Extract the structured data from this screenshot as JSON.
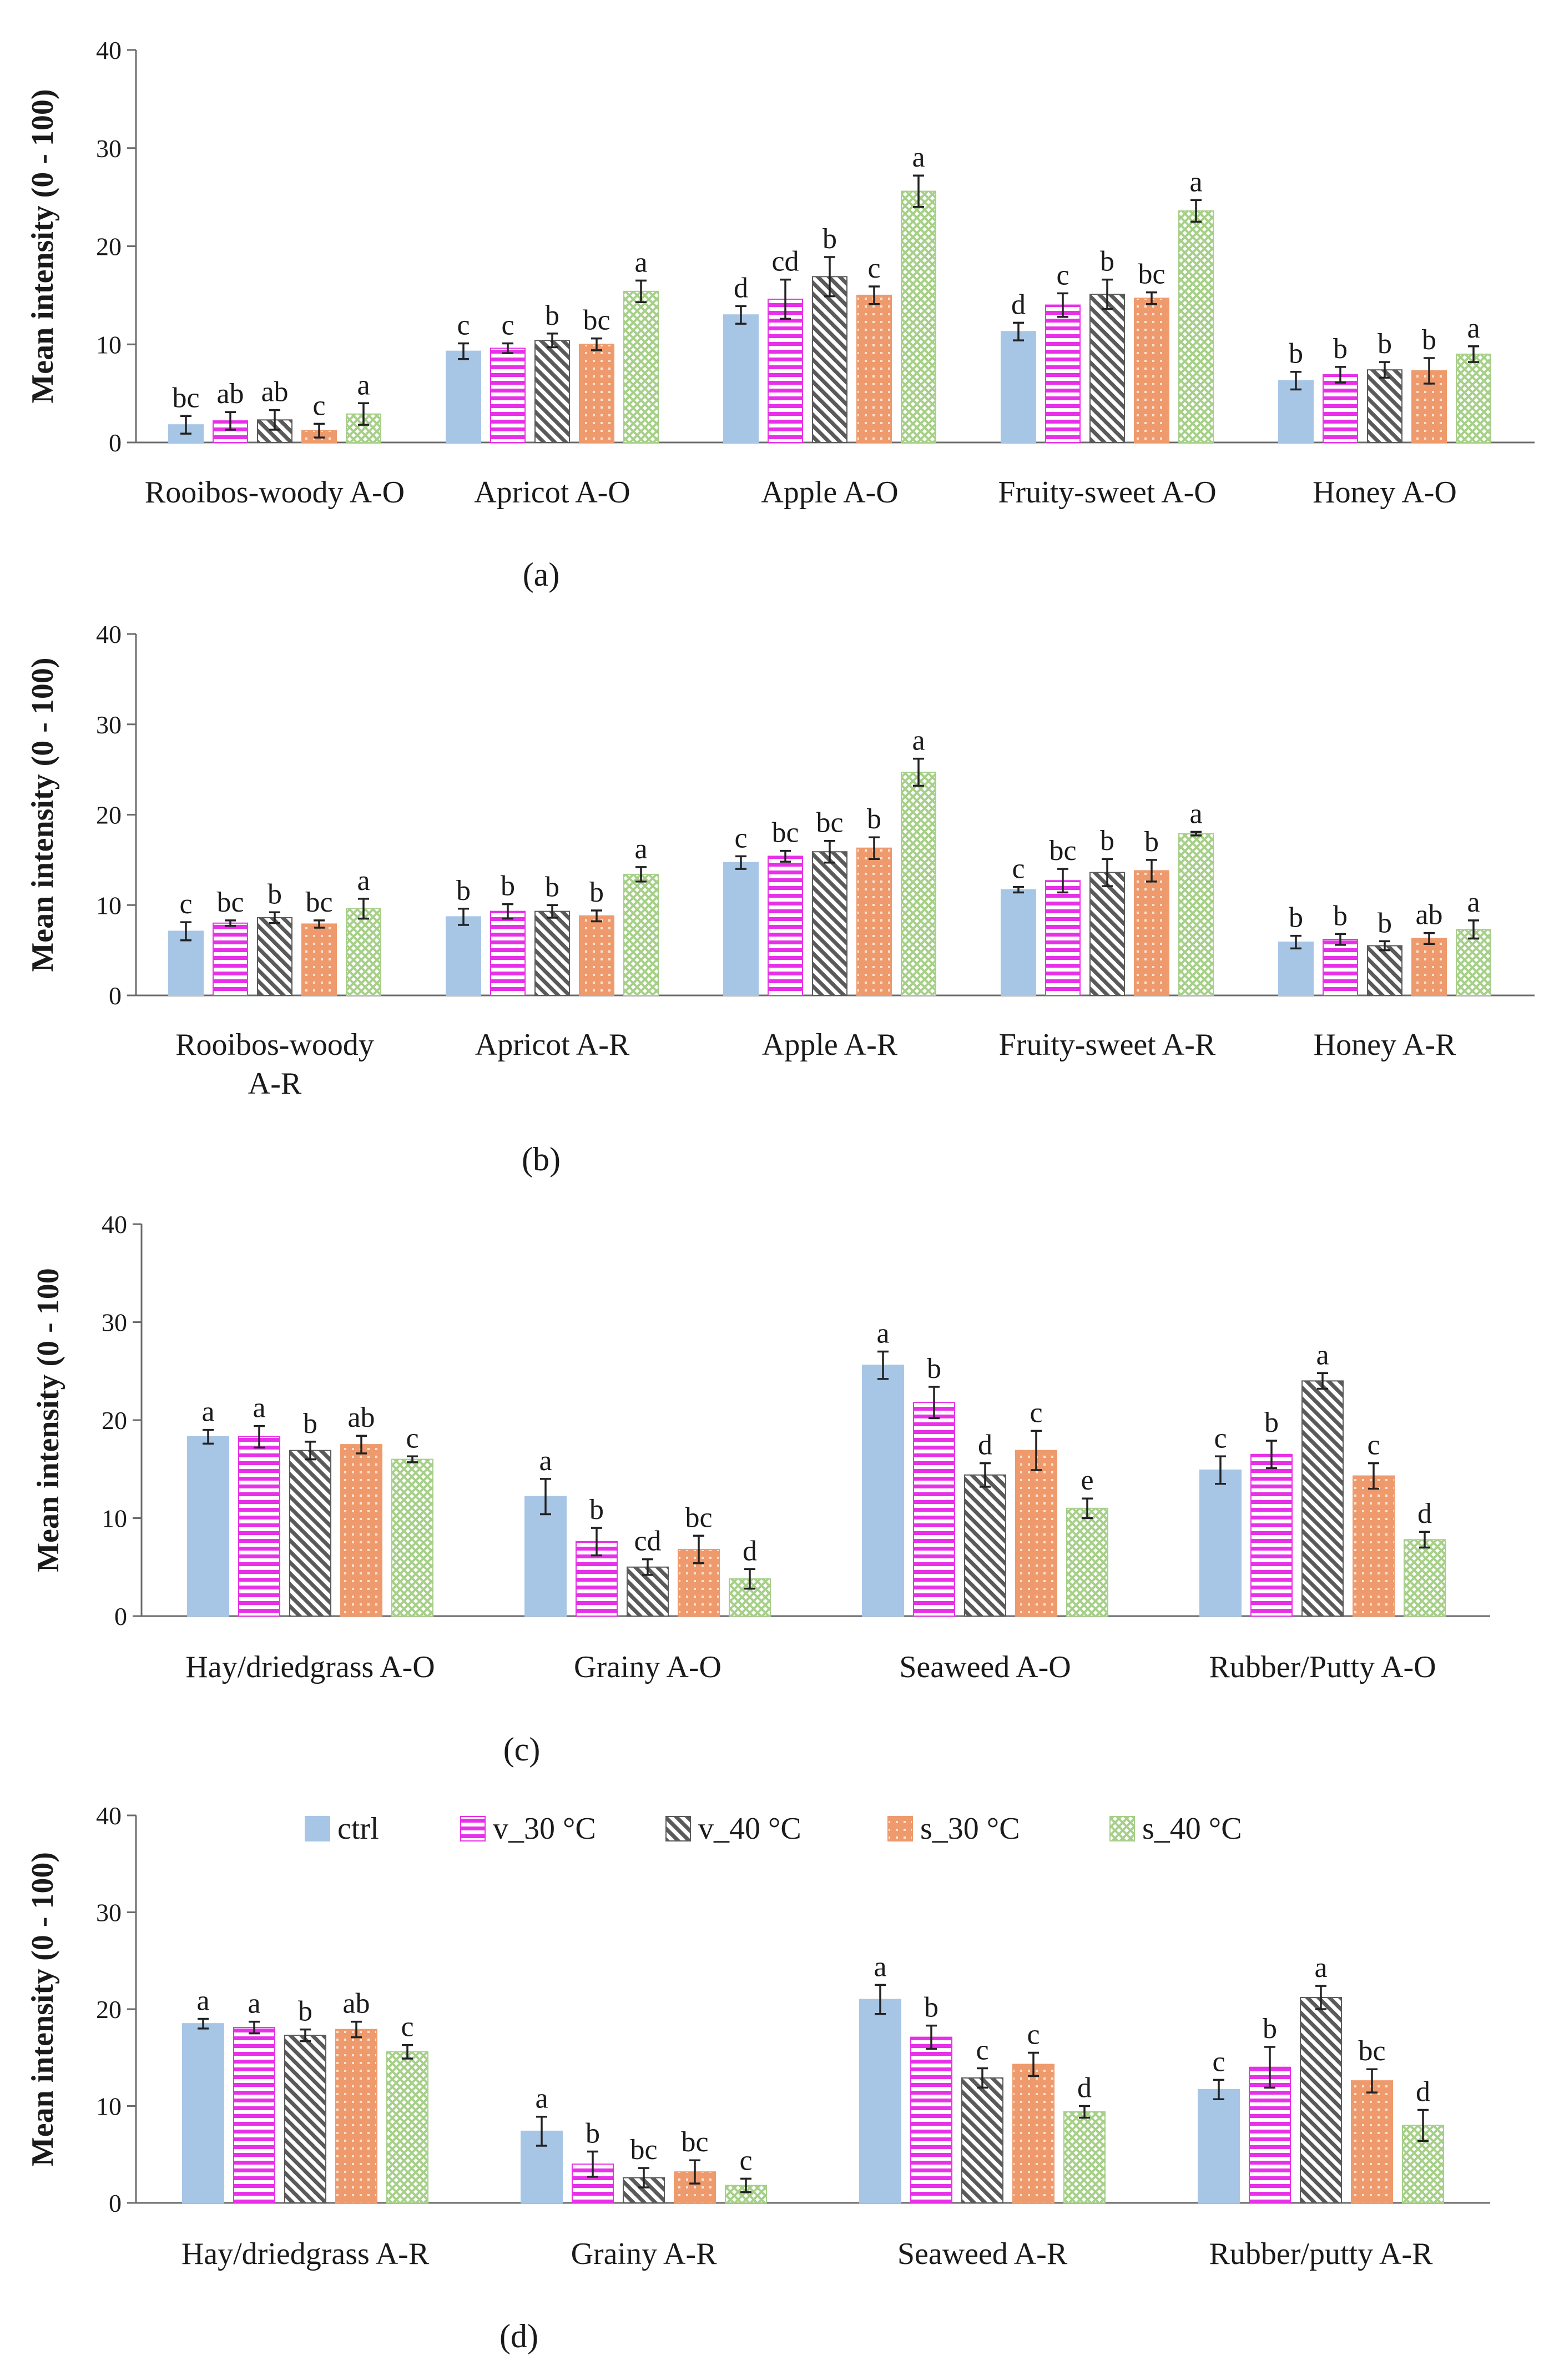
{
  "figure": {
    "series_names": [
      "ctrl",
      "v_30 °C",
      "v_40 °C",
      "s_30 °C",
      "s_40 °C"
    ],
    "colors": {
      "ctrl": "#a7c6e6",
      "v_30": "#e830e8",
      "v_40": "#5a5a5a",
      "s_30": "#ee9a6c",
      "s_40": "#a6cf88",
      "axis": "#6b6b6b",
      "text": "#1a1a1a"
    }
  },
  "chart_data": [
    {
      "panel_label": "(a)",
      "type": "bar",
      "ylabel": "Mean intensity (0 - 100)",
      "ylim": [
        0,
        40
      ],
      "yticks": [
        "0",
        "10",
        "20",
        "30",
        "40"
      ],
      "categories": [
        "Rooibos-woody A-O",
        "Apricot A-O",
        "Apple A-O",
        "Fruity-sweet A-O",
        "Honey A-O"
      ],
      "series": [
        {
          "name": "ctrl",
          "values": [
            1.8,
            9.3,
            13.0,
            11.3,
            6.3
          ],
          "errors": [
            0.9,
            0.8,
            0.9,
            0.9,
            0.9
          ],
          "letters": [
            "bc",
            "c",
            "d",
            "d",
            "b"
          ]
        },
        {
          "name": "v_30 °C",
          "values": [
            2.2,
            9.6,
            14.6,
            14.0,
            6.9
          ],
          "errors": [
            0.9,
            0.5,
            2.0,
            1.2,
            0.8
          ],
          "letters": [
            "ab",
            "c",
            "cd",
            "c",
            "b"
          ]
        },
        {
          "name": "v_40 °C",
          "values": [
            2.3,
            10.4,
            16.9,
            15.1,
            7.4
          ],
          "errors": [
            1.0,
            0.7,
            2.0,
            1.5,
            0.8
          ],
          "letters": [
            "ab",
            "b",
            "b",
            "b",
            "b"
          ]
        },
        {
          "name": "s_30 °C",
          "values": [
            1.2,
            10.0,
            15.0,
            14.7,
            7.3
          ],
          "errors": [
            0.7,
            0.6,
            0.9,
            0.6,
            1.3
          ],
          "letters": [
            "c",
            "bc",
            "c",
            "bc",
            "b"
          ]
        },
        {
          "name": "s_40 °C",
          "values": [
            2.9,
            15.4,
            25.6,
            23.6,
            9.0
          ],
          "errors": [
            1.1,
            1.1,
            1.6,
            1.1,
            0.8
          ],
          "letters": [
            "a",
            "a",
            "a",
            "a",
            "a"
          ]
        }
      ]
    },
    {
      "panel_label": "(b)",
      "type": "bar",
      "ylabel": "Mean intensity (0 - 100)",
      "ylim": [
        0,
        40
      ],
      "yticks": [
        "0",
        "10",
        "20",
        "30",
        "40"
      ],
      "categories": [
        "Rooibos-woody A-R",
        "Apricot A-R",
        "Apple A-R",
        "Fruity-sweet A-R",
        "Honey A-R"
      ],
      "series": [
        {
          "name": "ctrl",
          "values": [
            7.1,
            8.7,
            14.7,
            11.7,
            5.9
          ],
          "errors": [
            1.0,
            0.9,
            0.7,
            0.3,
            0.7
          ],
          "letters": [
            "c",
            "b",
            "c",
            "c",
            "b"
          ]
        },
        {
          "name": "v_30 °C",
          "values": [
            8.0,
            9.3,
            15.4,
            12.7,
            6.2
          ],
          "errors": [
            0.3,
            0.8,
            0.6,
            1.3,
            0.6
          ],
          "letters": [
            "bc",
            "b",
            "bc",
            "bc",
            "b"
          ]
        },
        {
          "name": "v_40 °C",
          "values": [
            8.6,
            9.3,
            15.9,
            13.6,
            5.5
          ],
          "errors": [
            0.6,
            0.7,
            1.2,
            1.5,
            0.5
          ],
          "letters": [
            "b",
            "b",
            "bc",
            "b",
            "b"
          ]
        },
        {
          "name": "s_30 °C",
          "values": [
            7.9,
            8.8,
            16.3,
            13.8,
            6.3
          ],
          "errors": [
            0.4,
            0.6,
            1.2,
            1.2,
            0.6
          ],
          "letters": [
            "bc",
            "b",
            "b",
            "b",
            "ab"
          ]
        },
        {
          "name": "s_40 °C",
          "values": [
            9.6,
            13.4,
            24.7,
            17.9,
            7.3
          ],
          "errors": [
            1.1,
            0.8,
            1.5,
            0.2,
            1.0
          ],
          "letters": [
            "a",
            "a",
            "a",
            "a",
            "a"
          ]
        }
      ]
    },
    {
      "panel_label": "(c)",
      "type": "bar",
      "ylabel": "Mean intensity (0 - 100",
      "ylim": [
        0,
        40
      ],
      "yticks": [
        "0",
        "10",
        "20",
        "30",
        "40"
      ],
      "categories": [
        "Hay/driedgrass A-O",
        "Grainy A-O",
        "Seaweed A-O",
        "Rubber/Putty A-O"
      ],
      "series": [
        {
          "name": "ctrl",
          "values": [
            18.3,
            12.2,
            25.6,
            14.9
          ],
          "errors": [
            0.7,
            1.8,
            1.4,
            1.4
          ],
          "letters": [
            "a",
            "a",
            "a",
            "c"
          ]
        },
        {
          "name": "v_30 °C",
          "values": [
            18.3,
            7.6,
            21.8,
            16.5
          ],
          "errors": [
            1.1,
            1.4,
            1.6,
            1.4
          ],
          "letters": [
            "a",
            "b",
            "b",
            "b"
          ]
        },
        {
          "name": "v_40 °C",
          "values": [
            16.9,
            5.0,
            14.4,
            24.0
          ],
          "errors": [
            0.9,
            0.8,
            1.2,
            0.8
          ],
          "letters": [
            "b",
            "cd",
            "d",
            "a"
          ]
        },
        {
          "name": "s_30 °C",
          "values": [
            17.5,
            6.8,
            16.9,
            14.3
          ],
          "errors": [
            0.9,
            1.4,
            2.0,
            1.3
          ],
          "letters": [
            "ab",
            "bc",
            "c",
            "c"
          ]
        },
        {
          "name": "s_40 °C",
          "values": [
            16.0,
            3.8,
            11.0,
            7.8
          ],
          "errors": [
            0.3,
            1.0,
            1.0,
            0.8
          ],
          "letters": [
            "c",
            "d",
            "e",
            "d"
          ]
        }
      ]
    },
    {
      "panel_label": "(d)",
      "type": "bar",
      "ylabel": "Mean intensity (0 - 100)",
      "ylim": [
        0,
        40
      ],
      "yticks": [
        "0",
        "10",
        "20",
        "30",
        "40"
      ],
      "legend_position": "top",
      "categories": [
        "Hay/driedgrass A-R",
        "Grainy A-R",
        "Seaweed A-R",
        "Rubber/putty A-R"
      ],
      "series": [
        {
          "name": "ctrl",
          "values": [
            18.5,
            7.4,
            21.0,
            11.7
          ],
          "errors": [
            0.5,
            1.5,
            1.5,
            1.0
          ],
          "letters": [
            "a",
            "a",
            "a",
            "c"
          ]
        },
        {
          "name": "v_30 °C",
          "values": [
            18.1,
            4.0,
            17.1,
            14.0
          ],
          "errors": [
            0.6,
            1.3,
            1.2,
            2.1
          ],
          "letters": [
            "a",
            "b",
            "b",
            "b"
          ]
        },
        {
          "name": "v_40 °C",
          "values": [
            17.3,
            2.6,
            12.9,
            21.2
          ],
          "errors": [
            0.6,
            1.0,
            1.0,
            1.2
          ],
          "letters": [
            "b",
            "bc",
            "c",
            "a"
          ]
        },
        {
          "name": "s_30 °C",
          "values": [
            17.9,
            3.2,
            14.3,
            12.6
          ],
          "errors": [
            0.8,
            1.2,
            1.2,
            1.2
          ],
          "letters": [
            "ab",
            "bc",
            "c",
            "bc"
          ]
        },
        {
          "name": "s_40 °C",
          "values": [
            15.6,
            1.8,
            9.4,
            8.0
          ],
          "errors": [
            0.7,
            0.7,
            0.6,
            1.6
          ],
          "letters": [
            "c",
            "c",
            "d",
            "d"
          ]
        }
      ]
    }
  ]
}
